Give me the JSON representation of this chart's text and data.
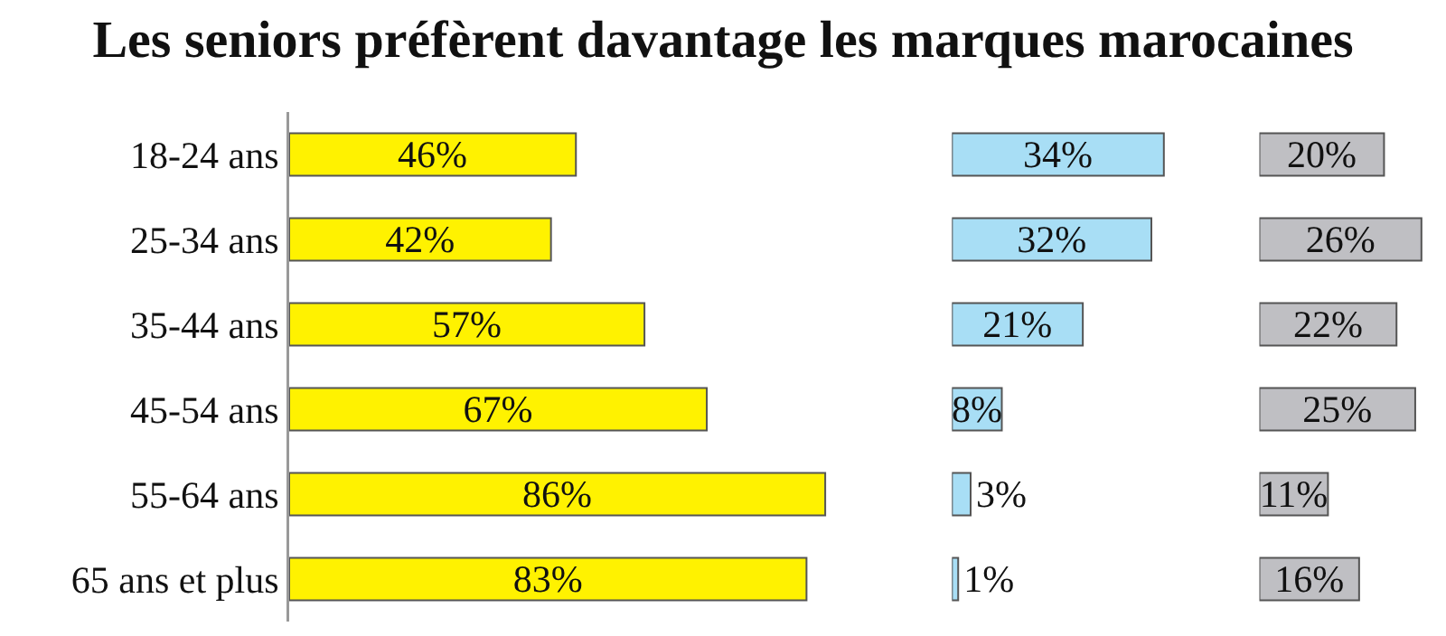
{
  "chart_data": [
    {
      "type": "bar",
      "orientation": "horizontal",
      "title": "Les seniors préfèrent davantage les marques marocaines",
      "categories": [
        "18-24 ans",
        "25-34 ans",
        "35-44 ans",
        "45-54 ans",
        "55-64 ans",
        "65 ans et plus"
      ],
      "values": [
        46,
        42,
        57,
        67,
        86,
        83
      ],
      "value_labels": [
        "46%",
        "42%",
        "57%",
        "67%",
        "86%",
        "83%"
      ],
      "color": "#fff200",
      "tick_labels": "y"
    },
    {
      "type": "bar",
      "orientation": "horizontal",
      "categories": [
        "18-24 ans",
        "25-34 ans",
        "35-44 ans",
        "45-54 ans",
        "55-64 ans",
        "65 ans et plus"
      ],
      "values": [
        34,
        32,
        21,
        8,
        3,
        1
      ],
      "value_labels": [
        "34%",
        "32%",
        "21%",
        "8%",
        "3%",
        "1%"
      ],
      "color": "#a8def5",
      "tick_labels": false
    },
    {
      "type": "bar",
      "orientation": "horizontal",
      "categories": [
        "18-24 ans",
        "25-34 ans",
        "35-44 ans",
        "45-54 ans",
        "55-64 ans",
        "65 ans et plus"
      ],
      "values": [
        20,
        26,
        22,
        25,
        11,
        16
      ],
      "value_labels": [
        "20%",
        "26%",
        "22%",
        "25%",
        "11%",
        "16%"
      ],
      "color": "#bfbfc3",
      "tick_labels": false
    }
  ]
}
